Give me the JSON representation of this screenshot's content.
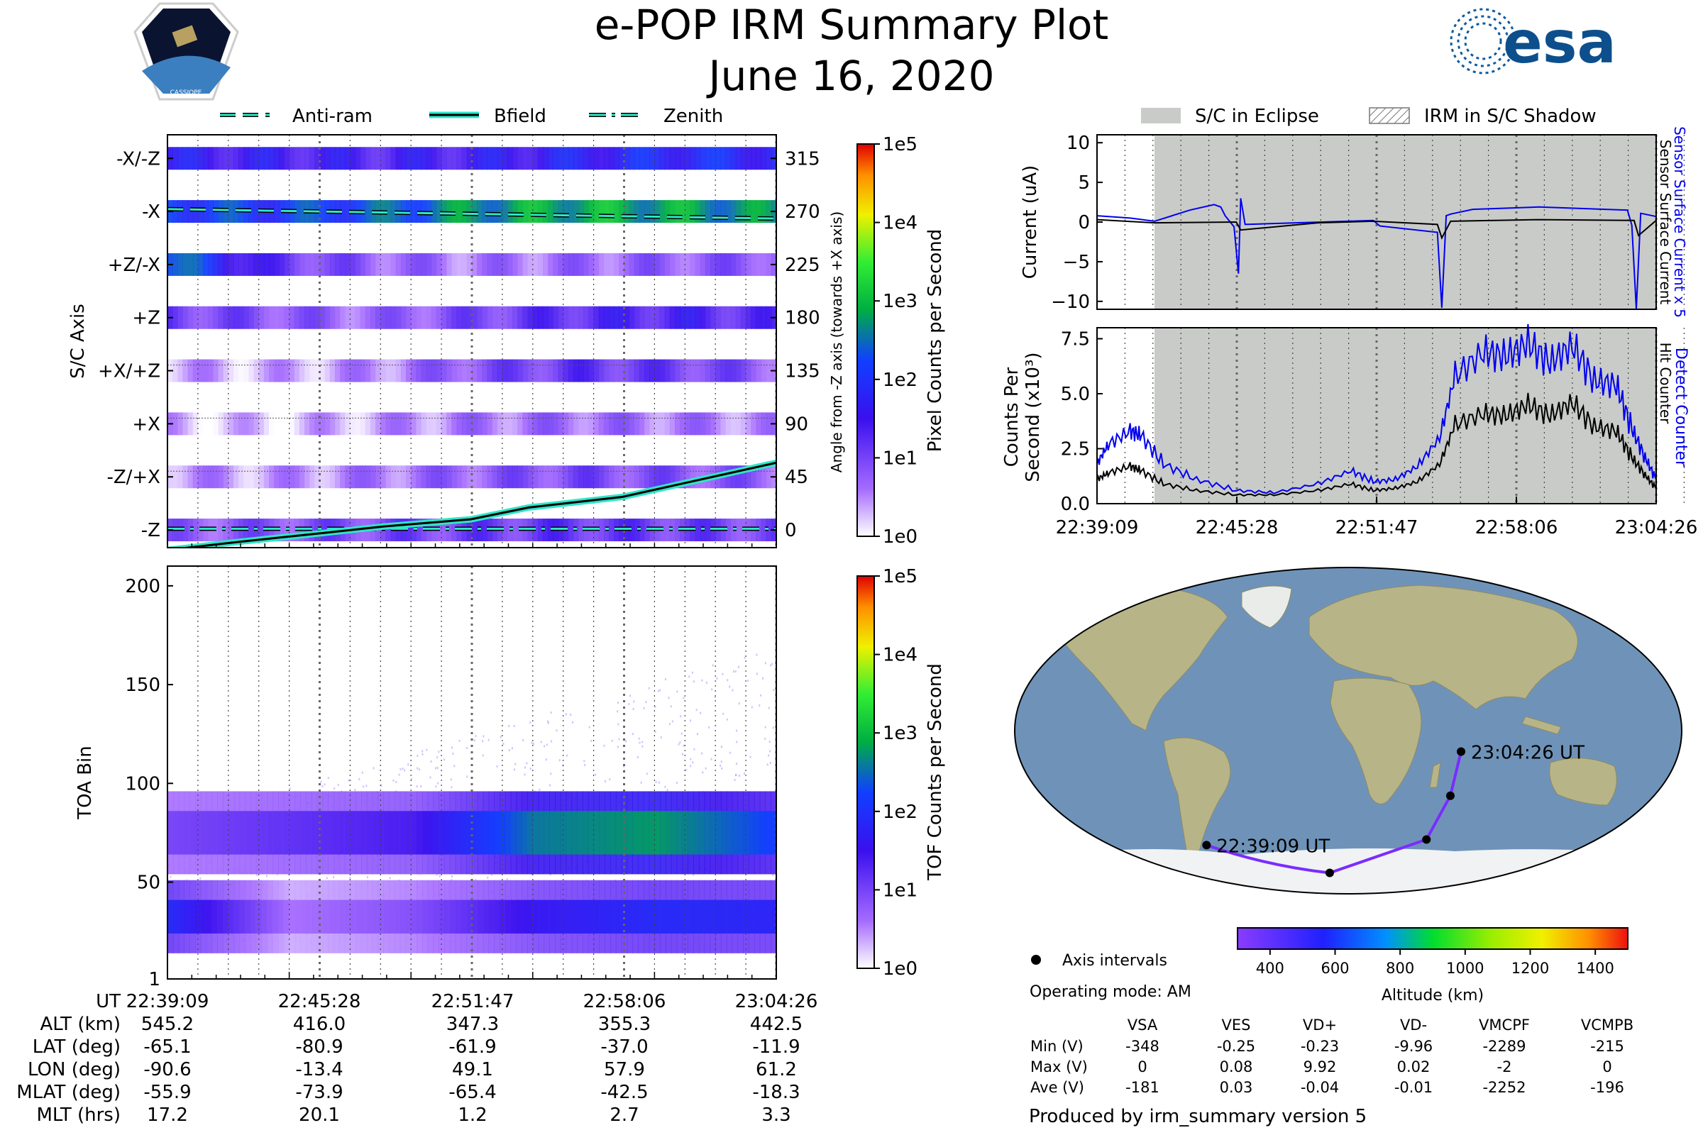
{
  "header": {
    "title": "e-POP IRM Summary Plot",
    "date": "June 16, 2020",
    "mission_logo_text": "CASSIOPE",
    "agency_logo_text": "esa"
  },
  "colors": {
    "bfield": "#000000",
    "bfield_halo": "#2ee6c8",
    "overlay": "#0a6b62",
    "eclipse": "#c9cbc9",
    "blue_series": "#0000ee",
    "black_series": "#000000",
    "track": "#7a2cff",
    "ocean": "#6f93b8",
    "land": "#b7b487",
    "ice": "#f0f2f4"
  },
  "chart_data": [
    {
      "id": "pixel_counts",
      "type": "heatmap",
      "legend": [
        {
          "label": "Anti-ram",
          "style": "dashed"
        },
        {
          "label": "Bfield",
          "style": "solid"
        },
        {
          "label": "Zenith",
          "style": "dashdot"
        }
      ],
      "ylabel": "S/C Axis",
      "y2label": "Angle from -Z axis (towards +X axis)",
      "y_categories": [
        "-X/-Z",
        "-X",
        "+Z/-X",
        "+Z",
        "+X/+Z",
        "+X",
        "-Z/+X",
        "-Z"
      ],
      "y2_ticks": [
        "315",
        "270",
        "225",
        "180",
        "135",
        "90",
        "45",
        "0"
      ],
      "colorbar_label": "Pixel Counts per Second",
      "colorbar_ticks": [
        "1e5",
        "1e4",
        "1e3",
        "1e2",
        "1e1",
        "1e0"
      ],
      "band_intensity": [
        {
          "axis": "-X/-Z",
          "log_counts": [
            1.6,
            1.5,
            1.4,
            1.5,
            1.7,
            1.9,
            1.8
          ]
        },
        {
          "axis": "-X",
          "log_counts": [
            2.2,
            2.1,
            2.3,
            2.7,
            2.9,
            2.8,
            2.6
          ]
        },
        {
          "axis": "+Z/-X",
          "log_counts": [
            2.5,
            1.2,
            0.8,
            0.6,
            0.7,
            0.8,
            0.9
          ]
        },
        {
          "axis": "+Z",
          "log_counts": [
            1.1,
            0.9,
            0.7,
            1.0,
            1.3,
            1.4,
            1.2
          ]
        },
        {
          "axis": "+X/+Z",
          "log_counts": [
            0.4,
            0.3,
            0.5,
            0.9,
            1.2,
            1.1,
            0.8
          ]
        },
        {
          "axis": "+X",
          "log_counts": [
            0.3,
            0.2,
            0.4,
            0.6,
            0.7,
            0.6,
            0.5
          ]
        },
        {
          "axis": "-Z/+X",
          "log_counts": [
            0.5,
            0.4,
            0.6,
            0.8,
            1.0,
            0.9,
            0.8
          ]
        },
        {
          "axis": "-Z",
          "log_counts": [
            0.8,
            0.9,
            1.0,
            1.1,
            1.2,
            1.1,
            1.0
          ]
        }
      ],
      "series": [
        {
          "name": "Anti-ram",
          "x_min": [
            0,
            25.3
          ],
          "angle_deg": [
            272,
            264
          ]
        },
        {
          "name": "Bfield",
          "x_min": [
            0,
            3,
            6.3,
            9,
            12.6,
            15,
            18.9,
            22,
            25.3
          ],
          "angle_deg": [
            -17,
            -10,
            -3,
            3,
            9,
            19,
            28,
            42,
            57
          ]
        },
        {
          "name": "Zenith",
          "x_min": [
            0,
            25.3
          ],
          "angle_deg": [
            1,
            1
          ]
        }
      ],
      "ylim_deg": [
        -15,
        335
      ]
    },
    {
      "id": "tof_counts",
      "type": "heatmap",
      "ylabel": "TOA Bin",
      "yticks": [
        "1",
        "50",
        "100",
        "150",
        "200"
      ],
      "ylim": [
        1,
        210
      ],
      "colorbar_label": "TOF Counts per Second",
      "colorbar_ticks": [
        "1e5",
        "1e4",
        "1e3",
        "1e2",
        "1e1",
        "1e0"
      ],
      "features": [
        {
          "name": "upper band",
          "toa_range": [
            60,
            90
          ],
          "x_min": [
            0,
            25.3
          ],
          "log_counts": [
            1.0,
            1.2,
            1.4,
            2.6,
            2.8,
            2.2
          ]
        },
        {
          "name": "lower band",
          "toa_range": [
            20,
            45
          ],
          "x_min": [
            0,
            25.3
          ],
          "log_counts": [
            1.9,
            0.6,
            0.9,
            1.6,
            1.9,
            1.8
          ]
        }
      ],
      "x_labels_row": {
        "UT": [
          "22:39:09",
          "22:45:28",
          "22:51:47",
          "22:58:06",
          "23:04:26"
        ],
        "rows": [
          {
            "label": "UT",
            "values": [
              "22:39:09",
              "22:45:28",
              "22:51:47",
              "22:58:06",
              "23:04:26"
            ]
          },
          {
            "label": "ALT (km)",
            "values": [
              "545.2",
              "416.0",
              "347.3",
              "355.3",
              "442.5"
            ]
          },
          {
            "label": "LAT (deg)",
            "values": [
              "-65.1",
              "-80.9",
              "-61.9",
              "-37.0",
              "-11.9"
            ]
          },
          {
            "label": "LON (deg)",
            "values": [
              "-90.6",
              "-13.4",
              "49.1",
              "57.9",
              "61.2"
            ]
          },
          {
            "label": "MLAT (deg)",
            "values": [
              "-55.9",
              "-73.9",
              "-65.4",
              "-42.5",
              "-18.3"
            ]
          },
          {
            "label": "MLT (hrs)",
            "values": [
              "17.2",
              "20.1",
              "1.2",
              "2.7",
              "3.3"
            ]
          }
        ]
      }
    },
    {
      "id": "current",
      "type": "line",
      "legend": [
        {
          "label": "S/C in Eclipse",
          "style": "filled"
        },
        {
          "label": "IRM in S/C Shadow",
          "style": "hatched"
        }
      ],
      "ylabel": "Current (uA)",
      "y2label_blue": "Sensor Surface Current x 5",
      "y2label_black": "Sensor Surface Current",
      "yticks": [
        "10",
        "5",
        "0",
        "−5",
        "−10"
      ],
      "ylim": [
        -11,
        11
      ],
      "eclipse_x_min": [
        2.6,
        25.3
      ],
      "series": [
        {
          "name": "Sensor Surface Current x 5",
          "color": "blue",
          "x_min": [
            0,
            1.5,
            2.6,
            4.2,
            5.3,
            5.6,
            5.8,
            6.2,
            6.4,
            6.5,
            6.7,
            9,
            12.5,
            12.8,
            15.4,
            15.6,
            15.8,
            16.0,
            17,
            20,
            24,
            24.2,
            24.4,
            24.6,
            25.3
          ],
          "values": [
            0.8,
            0.5,
            0.1,
            1.5,
            2.2,
            1.9,
            0.8,
            -0.6,
            -6.5,
            3.0,
            -0.3,
            -0.1,
            0.2,
            -0.5,
            -1.3,
            -10.8,
            0.8,
            1.0,
            1.6,
            1.9,
            1.5,
            -0.4,
            -11.0,
            1.1,
            0.7
          ]
        },
        {
          "name": "Sensor Surface Current",
          "color": "black",
          "x_min": [
            0,
            2.6,
            6.3,
            6.5,
            10,
            12.5,
            15.4,
            15.6,
            16,
            20,
            24.3,
            24.5,
            25.3
          ],
          "values": [
            0.3,
            -0.1,
            0.0,
            -1.0,
            -0.1,
            0.1,
            -0.3,
            -2.0,
            0.1,
            0.3,
            0.2,
            -1.7,
            0.2
          ]
        }
      ]
    },
    {
      "id": "counts",
      "type": "line",
      "ylabel": "Counts Per Second (x10³)",
      "y2label_blue": "Detect Counter",
      "y2label_black": "Hit Counter",
      "yticks": [
        "7.5",
        "5.0",
        "2.5",
        "0.0"
      ],
      "ylim": [
        0,
        8.0
      ],
      "xticks": [
        "22:39:09",
        "22:45:28",
        "22:51:47",
        "22:58:06",
        "23:04:26"
      ],
      "eclipse_x_min": [
        2.6,
        25.3
      ],
      "series": [
        {
          "name": "Detect Counter",
          "color": "blue",
          "x_min": [
            0,
            0.5,
            1.5,
            2.0,
            3.0,
            4.5,
            6.3,
            8,
            10,
            11.5,
            12.5,
            13.5,
            14.5,
            15.5,
            16.2,
            17.5,
            18.5,
            19.5,
            20.5,
            21.5,
            22.5,
            23.5,
            24.2,
            24.8,
            25.3
          ],
          "values": [
            1.8,
            2.7,
            3.3,
            3.1,
            1.8,
            1.1,
            0.6,
            0.5,
            0.9,
            1.5,
            1.0,
            1.1,
            1.7,
            3.0,
            5.8,
            6.9,
            6.7,
            7.3,
            6.4,
            7.2,
            5.6,
            5.4,
            3.4,
            2.1,
            1.1
          ]
        },
        {
          "name": "Hit Counter",
          "color": "black",
          "x_min": [
            0,
            0.5,
            1.5,
            2.0,
            3.0,
            4.5,
            6.3,
            8,
            10,
            11.5,
            12.5,
            13.5,
            14.5,
            15.5,
            16.2,
            17.5,
            18.5,
            19.5,
            20.5,
            21.5,
            22.5,
            23.5,
            24.2,
            24.8,
            25.3
          ],
          "values": [
            1.1,
            1.4,
            1.7,
            1.5,
            0.9,
            0.6,
            0.4,
            0.4,
            0.6,
            0.9,
            0.6,
            0.7,
            1.0,
            1.8,
            3.6,
            4.1,
            4.0,
            4.5,
            4.0,
            4.6,
            3.5,
            3.3,
            2.1,
            1.3,
            0.7
          ]
        }
      ]
    },
    {
      "id": "orbit_map",
      "type": "scatter",
      "points": [
        {
          "lon": -90.6,
          "lat": -65.1,
          "label": "22:39:09 UT"
        },
        {
          "lon": -13.4,
          "lat": -80.9,
          "label": ""
        },
        {
          "lon": 49.1,
          "lat": -61.9,
          "label": ""
        },
        {
          "lon": 57.9,
          "lat": -37.0,
          "label": ""
        },
        {
          "lon": 61.2,
          "lat": -11.9,
          "label": "23:04:26 UT"
        }
      ],
      "legend_marker": "Axis intervals",
      "operating_mode": "Operating mode: AM",
      "colorbar_label": "Altitude (km)",
      "colorbar_ticks": [
        "400",
        "600",
        "800",
        "1000",
        "1200",
        "1400"
      ],
      "colorbar_range": [
        300,
        1500
      ]
    },
    {
      "id": "voltages",
      "type": "table",
      "columns": [
        "VSA",
        "VES",
        "VD+",
        "VD-",
        "VMCPF",
        "VCMPB"
      ],
      "rows": [
        {
          "label": "Min (V)",
          "values": [
            "-348",
            "-0.25",
            "-0.23",
            "-9.96",
            "-2289",
            "-215"
          ]
        },
        {
          "label": "Max (V)",
          "values": [
            "0",
            "0.08",
            "9.92",
            "0.02",
            "-2",
            "0"
          ]
        },
        {
          "label": "Ave (V)",
          "values": [
            "-181",
            "0.03",
            "-0.04",
            "-0.01",
            "-2252",
            "-196"
          ]
        }
      ]
    }
  ],
  "footer": "Produced by irm_summary version 5"
}
